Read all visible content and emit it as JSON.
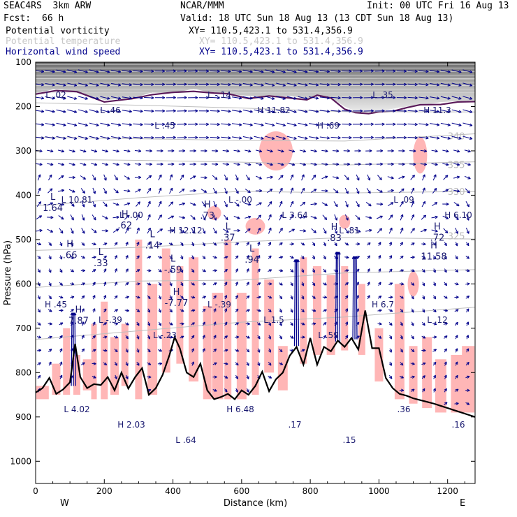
{
  "header": {
    "model": "SEAC4RS  3km ARW",
    "center": "NCAR/MMM",
    "init": "Init: 00 UTC Fri 16 Aug 13",
    "fcst_label": "Fcst:",
    "fcst_value": "66 h",
    "valid": "Valid: 18 UTC Sun 18 Aug 13 (13 CDT Sun 18 Aug 13)"
  },
  "fields": [
    {
      "name": "Potential vorticity",
      "xy": "XY= 110.5,423.1 to 531.4,356.9",
      "color": "#000000"
    },
    {
      "name": "Potential temperature",
      "xy": "XY= 110.5,423.1 to 531.4,356.9",
      "color": "#c8c8c8"
    },
    {
      "name": "Horizontal wind speed",
      "xy": "XY= 110.5,423.1 to 531.4,356.9",
      "color": "#00008b"
    }
  ],
  "chart_data": {
    "type": "cross-section",
    "xlabel": "Distance (km)",
    "ylabel": "Pressure (hPa)",
    "xlim": [
      0,
      1280
    ],
    "ylim": [
      1050,
      100
    ],
    "x_ticks": [
      0,
      200,
      400,
      600,
      800,
      1000,
      1200
    ],
    "y_ticks": [
      100,
      200,
      300,
      400,
      500,
      600,
      700,
      800,
      900,
      1000
    ],
    "x_end_labels": {
      "left": "W",
      "right": "E"
    },
    "colors": {
      "terrain": "#000000",
      "pv_fill": "#ffb6b6",
      "wind": "#00008b",
      "theta": "#bdbdbd",
      "pv_contour": "#5a1a5a",
      "labels": "#191970"
    },
    "terrain": {
      "x": [
        0,
        20,
        40,
        60,
        80,
        100,
        115,
        130,
        150,
        170,
        190,
        210,
        230,
        250,
        270,
        290,
        310,
        330,
        350,
        370,
        390,
        405,
        420,
        440,
        460,
        480,
        500,
        520,
        540,
        560,
        580,
        600,
        620,
        640,
        660,
        680,
        700,
        720,
        740,
        760,
        780,
        800,
        820,
        840,
        860,
        880,
        900,
        920,
        940,
        960,
        980,
        1000,
        1020,
        1040,
        1060,
        1080,
        1100,
        1120,
        1140,
        1160,
        1180,
        1200,
        1220,
        1240,
        1260,
        1280
      ],
      "p": [
        845,
        835,
        812,
        848,
        838,
        822,
        735,
        810,
        835,
        826,
        828,
        810,
        840,
        800,
        836,
        810,
        790,
        850,
        835,
        805,
        760,
        720,
        745,
        800,
        810,
        780,
        840,
        860,
        855,
        848,
        860,
        840,
        850,
        830,
        798,
        842,
        815,
        800,
        762,
        742,
        782,
        722,
        782,
        742,
        752,
        728,
        742,
        722,
        748,
        660,
        745,
        745,
        812,
        835,
        848,
        852,
        858,
        862,
        866,
        870,
        875,
        880,
        885,
        890,
        895,
        900
      ]
    },
    "theta_contours": [
      {
        "label": "",
        "x": [
          0,
          300,
          600,
          900,
          1280
        ],
        "p": [
          140,
          138,
          136,
          134,
          132
        ]
      },
      {
        "label": "",
        "x": [
          0,
          300,
          600,
          900,
          1280
        ],
        "p": [
          185,
          190,
          196,
          204,
          212
        ]
      },
      {
        "label": "340",
        "x": [
          0,
          300,
          600,
          900,
          1280
        ],
        "p": [
          262,
          266,
          270,
          272,
          268
        ]
      },
      {
        "label": "335",
        "x": [
          0,
          300,
          600,
          900,
          1280
        ],
        "p": [
          318,
          321,
          326,
          333,
          332
        ]
      },
      {
        "label": "330",
        "x": [
          0,
          300,
          600,
          900,
          1280
        ],
        "p": [
          430,
          412,
          398,
          402,
          393
        ]
      },
      {
        "label": "325",
        "x": [
          0,
          300,
          600,
          900,
          1280
        ],
        "p": [
          532,
          525,
          512,
          502,
          493
        ]
      },
      {
        "label": "",
        "x": [
          0,
          300,
          600,
          900,
          1280
        ],
        "p": [
          610,
          595,
          592,
          575,
          560
        ]
      },
      {
        "label": "",
        "x": [
          0,
          300,
          600,
          900,
          1280
        ],
        "p": [
          720,
          700,
          680,
          668,
          650
        ]
      }
    ],
    "highs": [
      {
        "x": 50,
        "p": 410,
        "label": "1.64",
        "kind": "L"
      },
      {
        "x": 100,
        "p": 517,
        "label": ".66",
        "kind": "H"
      },
      {
        "x": 125,
        "p": 665,
        "label": "7.87",
        "kind": "H"
      },
      {
        "x": 190,
        "p": 535,
        "label": ".33",
        "kind": "L"
      },
      {
        "x": 260,
        "p": 450,
        "label": ".62",
        "kind": "H"
      },
      {
        "x": 340,
        "p": 495,
        "label": ".14",
        "kind": "L"
      },
      {
        "x": 400,
        "p": 550,
        "label": "-.59",
        "kind": "L"
      },
      {
        "x": 410,
        "p": 625,
        "label": "-7.77",
        "kind": "H"
      },
      {
        "x": 500,
        "p": 428,
        "label": ".73",
        "kind": "H"
      },
      {
        "x": 560,
        "p": 477,
        "label": ".37",
        "kind": "L"
      },
      {
        "x": 630,
        "p": 527,
        "label": ".94",
        "kind": "L"
      },
      {
        "x": 870,
        "p": 478,
        "label": ".83",
        "kind": "H"
      },
      {
        "x": 1170,
        "p": 477,
        "label": ".72",
        "kind": "H"
      },
      {
        "x": 1160,
        "p": 520,
        "label": "11.58",
        "kind": "H"
      }
    ],
    "annotation_labels": [
      "L .02",
      "L .46",
      "L .45",
      "L -.14",
      "H 11.82",
      "H .69",
      "L .35",
      "H 11.3",
      "L 10.81",
      "L -.00",
      "H 12.12",
      "L -.00",
      "L 3.64",
      "L .81",
      "L .09",
      "H 6.10",
      "H .45",
      "L -.39",
      "L -.23",
      "L -.39",
      "L 1.5",
      "L .59",
      "H 6.7",
      "L .12",
      "L 4.02",
      "H 2.03",
      "L .64",
      "H 6.48",
      ".17",
      ".15",
      ".36",
      ".16"
    ],
    "wind_jets": [
      {
        "x": 110,
        "p_bottom": 830,
        "p_top": 665
      },
      {
        "x": 760,
        "p_bottom": 740,
        "p_top": 545
      },
      {
        "x": 880,
        "p_bottom": 730,
        "p_top": 528
      },
      {
        "x": 930,
        "p_bottom": 725,
        "p_top": 538
      }
    ]
  }
}
